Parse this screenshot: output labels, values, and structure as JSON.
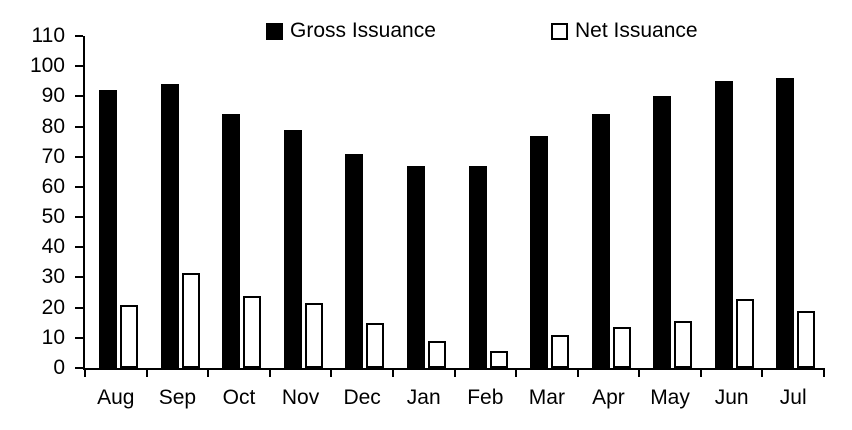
{
  "chart_data": {
    "type": "bar",
    "title": "",
    "xlabel": "",
    "ylabel": "",
    "categories": [
      "Aug",
      "Sep",
      "Oct",
      "Nov",
      "Dec",
      "Jan",
      "Feb",
      "Mar",
      "Apr",
      "May",
      "Jun",
      "Jul"
    ],
    "series": [
      {
        "name": "Gross Issuance",
        "fill": "#000000",
        "border": "#000000",
        "values": [
          92,
          94,
          84,
          79,
          71,
          67,
          67,
          77,
          84,
          90,
          95,
          96
        ]
      },
      {
        "name": "Net Issuance",
        "fill": "#ffffff",
        "border": "#000000",
        "values": [
          21,
          31.5,
          24,
          21.5,
          15,
          9,
          5.5,
          11,
          13.5,
          15.5,
          23,
          19
        ]
      }
    ],
    "ylim": [
      0,
      110
    ],
    "ytick_step": 10,
    "yticks": [
      0,
      10,
      20,
      30,
      40,
      50,
      60,
      70,
      80,
      90,
      100,
      110
    ],
    "grid": false,
    "legend_position": "top"
  },
  "colors": {
    "axis": "#000000",
    "text": "#000000",
    "background": "#ffffff"
  }
}
